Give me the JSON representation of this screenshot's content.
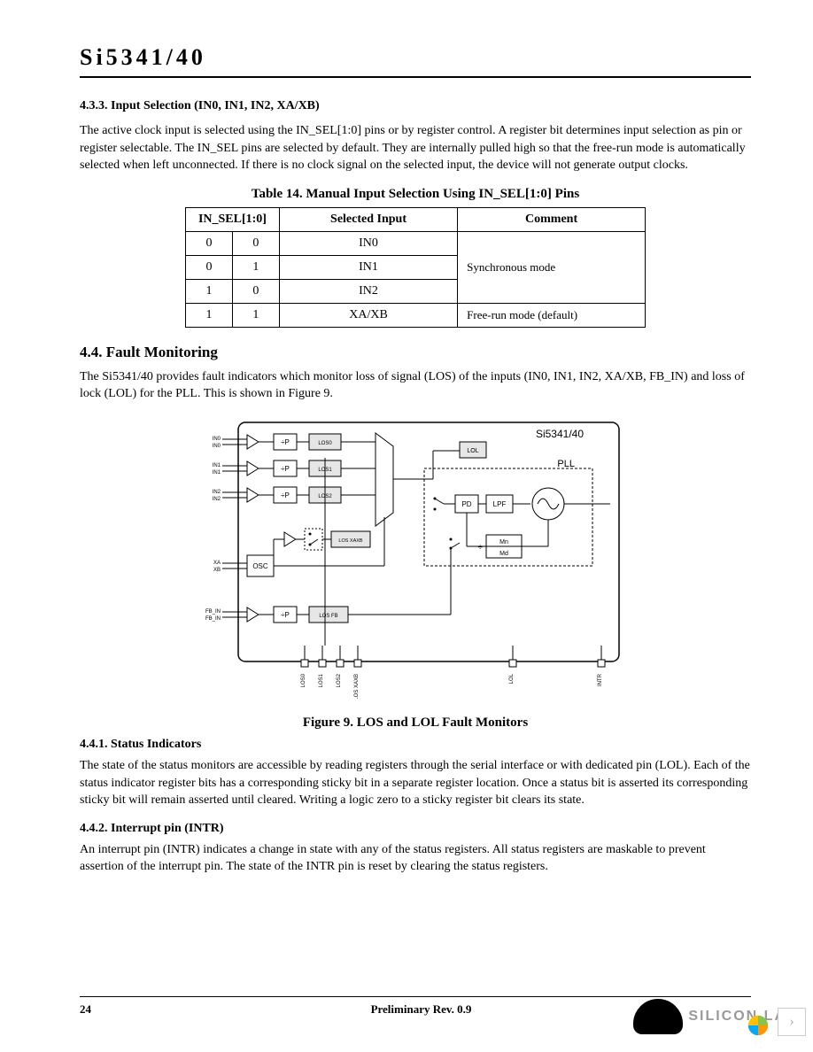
{
  "header": {
    "title": "Si5341/40"
  },
  "section433": {
    "heading": "4.3.3. Input Selection (IN0, IN1, IN2, XA/XB)",
    "para": "The active clock input is selected using the IN_SEL[1:0] pins or by register control. A register bit determines input selection as pin or register selectable. The IN_SEL pins are selected by default. They are internally pulled high so that the free-run mode is automatically selected when left unconnected. If there is no clock signal on the selected input, the device will not generate output clocks."
  },
  "table14": {
    "caption": "Table 14. Manual Input Selection Using IN_SEL[1:0] Pins",
    "head": {
      "c1": "IN_SEL[1:0]",
      "c2": "Selected Input",
      "c3": "Comment"
    },
    "rows": [
      {
        "b1": "0",
        "b0": "0",
        "sel": "IN0",
        "comment": "Synchronous mode"
      },
      {
        "b1": "0",
        "b0": "1",
        "sel": "IN1",
        "comment": ""
      },
      {
        "b1": "1",
        "b0": "0",
        "sel": "IN2",
        "comment": ""
      },
      {
        "b1": "1",
        "b0": "1",
        "sel": "XA/XB",
        "comment": "Free-run mode (default)"
      }
    ]
  },
  "section44": {
    "heading": "4.4.  Fault Monitoring",
    "para": "The Si5341/40 provides fault indicators which monitor loss of signal (LOS) of the inputs (IN0, IN1, IN2, XA/XB, FB_IN) and loss of lock (LOL) for the PLL. This is shown in Figure 9."
  },
  "figure9": {
    "chip_label": "Si5341/40",
    "inputs": {
      "in0a": "IN0",
      "in0b": "IN0",
      "in1a": "IN1",
      "in1b": "IN1",
      "in2a": "IN2",
      "in2b": "IN2",
      "xa": "XA",
      "xb": "XB",
      "fba": "FB_IN",
      "fbb": "FB_IN"
    },
    "blocks": {
      "p0": "÷P",
      "p1": "÷P",
      "p2": "÷P",
      "pfb": "÷P",
      "los0": "LOS0",
      "los1": "LOS1",
      "los2": "LOS2",
      "losxaxb": "LOS XAXB",
      "losfb": "LOS FB",
      "osc": "OSC",
      "pd": "PD",
      "lpf": "LPF",
      "pll": "PLL",
      "lol": "LOL",
      "mn": "Mn",
      "md": "Md"
    },
    "footers": {
      "f0": "LOS0",
      "f1": "LOS1",
      "f2": "LOS2",
      "f3": "LOS XAXB",
      "f4": "LOL",
      "f5": "INTR"
    },
    "caption": "Figure 9. LOS and LOL Fault Monitors",
    "colors": {
      "outline": "#000000",
      "fill_gray": "#e6e6e6",
      "fill_white": "#ffffff",
      "text": "#000000"
    }
  },
  "section441": {
    "heading": "4.4.1. Status Indicators",
    "para": "The state of the status monitors are accessible by reading registers through the serial interface or with dedicated pin (LOL). Each of the status indicator register bits has a corresponding sticky bit in a separate register location. Once a status bit is asserted its corresponding sticky bit will remain asserted until cleared. Writing a logic zero to a sticky register bit clears its state."
  },
  "section442": {
    "heading": "4.4.2. Interrupt pin (INTR)",
    "para": "An interrupt pin (INTR) indicates a change in state with any of the status registers. All status registers are maskable to prevent assertion of the interrupt pin. The state of the INTR pin is reset by clearing the status registers."
  },
  "footer": {
    "page": "24",
    "rev": "Preliminary Rev. 0.9"
  },
  "brand": {
    "text": "SILICON  LA"
  }
}
